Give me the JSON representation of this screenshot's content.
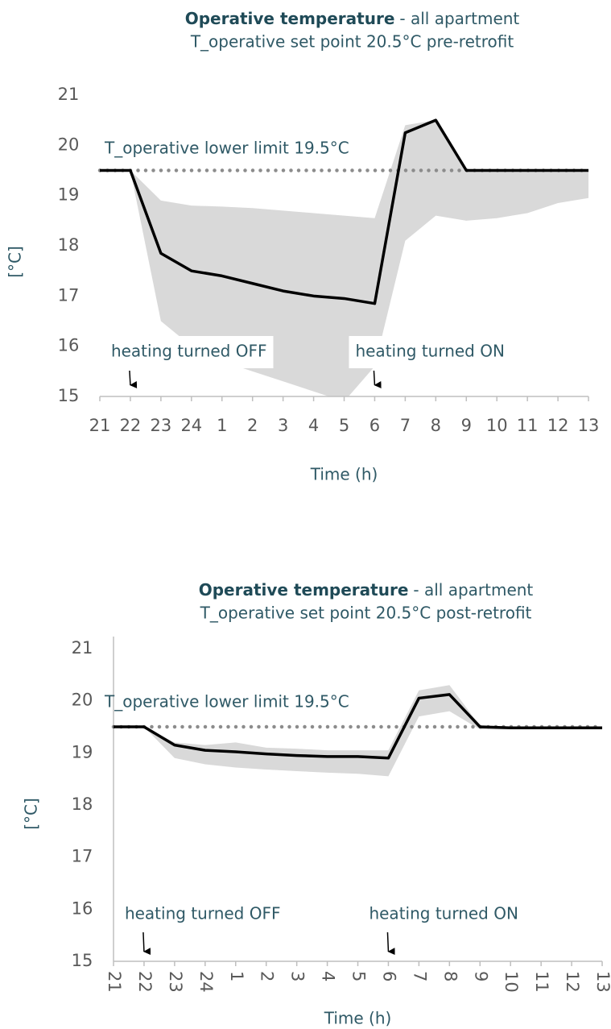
{
  "chart_data": [
    {
      "type": "line",
      "title": "Operative temperature",
      "title_suffix": "- all apartment",
      "subtitle": "T_operative set point 20.5°C pre-retrofit",
      "y_label": "[°C]",
      "x_label": "Time (h)",
      "categories": [
        "21",
        "22",
        "23",
        "24",
        "1",
        "2",
        "3",
        "4",
        "5",
        "6",
        "7",
        "8",
        "9",
        "10",
        "11",
        "12",
        "13"
      ],
      "values": [
        19.5,
        19.5,
        17.85,
        17.5,
        17.4,
        17.25,
        17.1,
        17.0,
        16.95,
        16.85,
        20.25,
        20.5,
        19.5,
        19.5,
        19.5,
        19.5,
        19.5
      ],
      "color": "#000000",
      "band": {
        "upper": [
          19.5,
          19.5,
          18.9,
          18.8,
          18.78,
          18.75,
          18.7,
          18.65,
          18.6,
          18.55,
          20.4,
          20.5,
          19.5,
          19.5,
          19.5,
          19.5,
          19.5
        ],
        "lower": [
          19.5,
          19.5,
          16.5,
          16.0,
          15.7,
          15.5,
          15.3,
          15.1,
          14.9,
          15.6,
          18.1,
          18.6,
          18.5,
          18.55,
          18.65,
          18.85,
          18.95
        ],
        "color": "#d9d9d9"
      },
      "reference_line": {
        "label": "T_operative lower limit 19.5°C",
        "value": 19.5,
        "color": "#8c8c8c"
      },
      "annotations": [
        {
          "text": "heating turned OFF",
          "category_index": 1
        },
        {
          "text": "heating turned ON",
          "category_index": 9
        }
      ],
      "ylim": [
        15,
        21
      ],
      "yticks": [
        15,
        16,
        17,
        18,
        19,
        20,
        21
      ]
    },
    {
      "type": "line",
      "title": "Operative temperature",
      "title_suffix": "- all apartment",
      "subtitle": "T_operative set point 20.5°C post-retrofit",
      "y_label": "[°C]",
      "x_label": "Time (h)",
      "categories": [
        "21",
        "22",
        "23",
        "24",
        "1",
        "2",
        "3",
        "4",
        "5",
        "6",
        "7",
        "8",
        "9",
        "10",
        "11",
        "12",
        "13"
      ],
      "values": [
        19.5,
        19.5,
        19.15,
        19.05,
        19.02,
        18.98,
        18.95,
        18.93,
        18.93,
        18.9,
        20.05,
        20.12,
        19.5,
        19.48,
        19.48,
        19.48,
        19.48
      ],
      "color": "#000000",
      "band": {
        "upper": [
          19.5,
          19.5,
          19.2,
          19.15,
          19.2,
          19.1,
          19.08,
          19.05,
          19.05,
          19.05,
          20.2,
          20.3,
          19.52,
          19.5,
          19.5,
          19.5,
          19.5
        ],
        "lower": [
          19.5,
          19.5,
          18.9,
          18.78,
          18.72,
          18.68,
          18.65,
          18.62,
          18.6,
          18.55,
          19.7,
          19.8,
          19.45,
          19.45,
          19.45,
          19.45,
          19.45
        ],
        "color": "#d9d9d9"
      },
      "reference_line": {
        "label": "T_operative lower limit 19.5°C",
        "value": 19.5,
        "color": "#8c8c8c"
      },
      "annotations": [
        {
          "text": "heating turned OFF",
          "category_index": 1
        },
        {
          "text": "heating turned ON",
          "category_index": 9
        }
      ],
      "ylim": [
        15,
        21
      ],
      "yticks": [
        15,
        16,
        17,
        18,
        19,
        20,
        21
      ]
    }
  ]
}
